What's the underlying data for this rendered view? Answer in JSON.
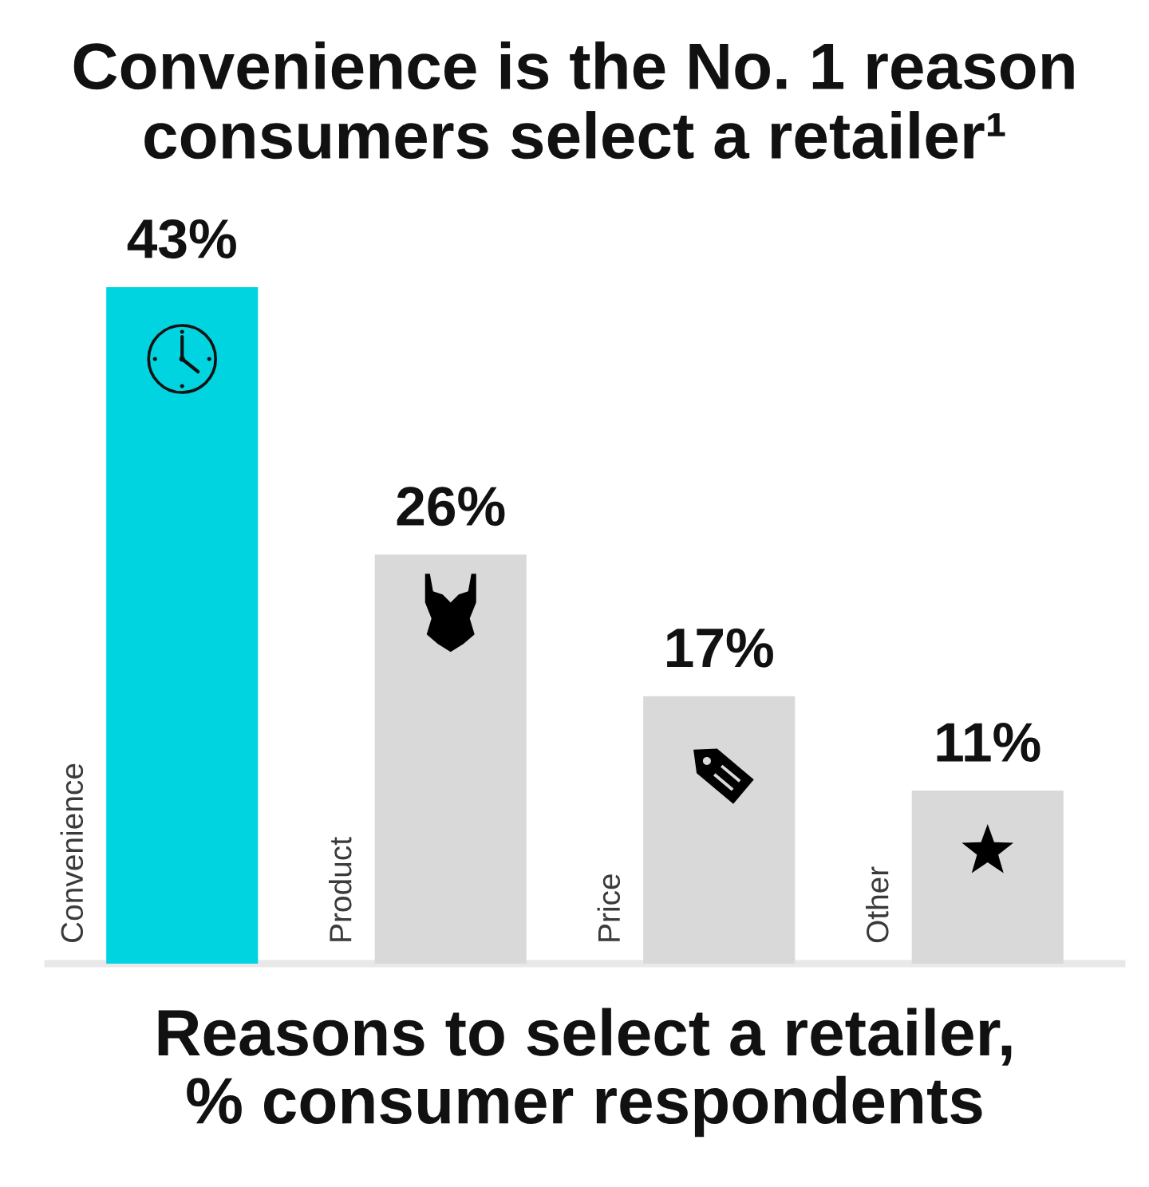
{
  "chart_data": {
    "type": "bar",
    "title": "Convenience is the No. 1 reason\nconsumers select a retailer¹",
    "xlabel": "Reasons to select a retailer,\n% consumer respondents",
    "categories": [
      "Convenience",
      "Product",
      "Price",
      "Other"
    ],
    "values": [
      43,
      26,
      17,
      11
    ],
    "colors": [
      "#00d4e0",
      "#d9d9d9",
      "#d9d9d9",
      "#d9d9d9"
    ],
    "value_labels": [
      "43%",
      "26%",
      "17%",
      "11%"
    ],
    "tick_labels": "x"
  }
}
